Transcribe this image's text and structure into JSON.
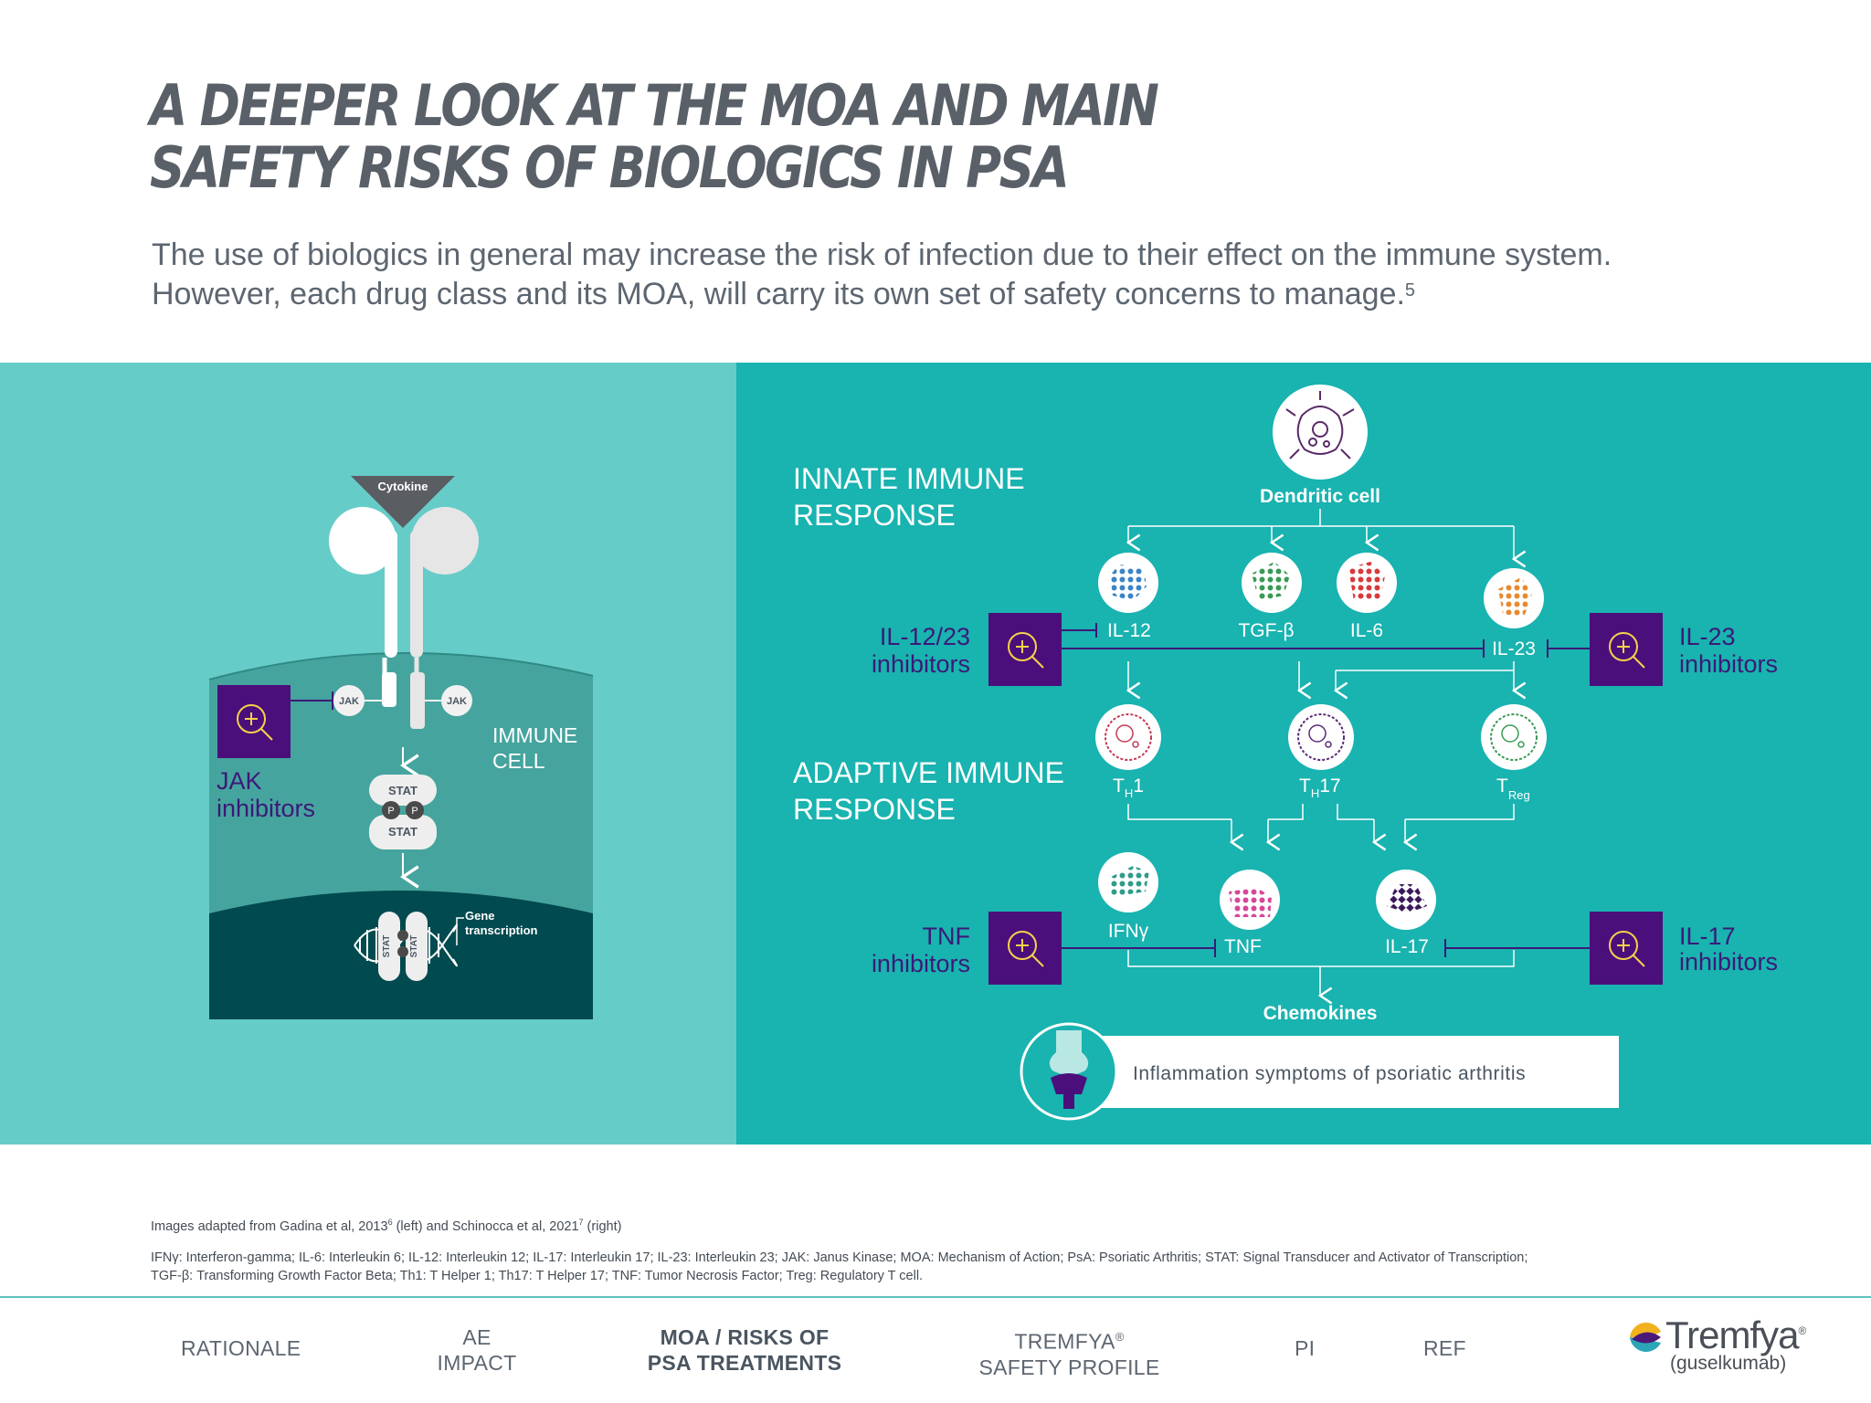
{
  "header": {
    "title_line1": "A DEEPER LOOK AT THE MOA AND MAIN",
    "title_line2": "SAFETY RISKS OF BIOLOGICS IN PSA",
    "intro": "The use of biologics in general may increase the risk of infection due to their effect on the immune system. However, each drug class and its MOA, will carry its own set of safety concerns to manage.",
    "intro_ref": "5"
  },
  "left_diagram": {
    "cytokine": "Cytokine",
    "jak": "JAK",
    "stat": "STAT",
    "p": "P",
    "immune_cell_1": "IMMUNE",
    "immune_cell_2": "CELL",
    "gene_1": "Gene",
    "gene_2": "transcription",
    "inhibitor_1": "JAK",
    "inhibitor_2": "inhibitors"
  },
  "right_diagram": {
    "innate_1": "INNATE IMMUNE",
    "innate_2": "RESPONSE",
    "adaptive_1": "ADAPTIVE IMMUNE",
    "adaptive_2": "RESPONSE",
    "dendritic": "Dendritic cell",
    "il12": "IL-12",
    "tgfb": "TGF-β",
    "il6": "IL-6",
    "il23": "IL-23",
    "th1": "T",
    "th1_sub": "H",
    "th1_num": "1",
    "th17": "T",
    "th17_sub": "H",
    "th17_num": "17",
    "treg": "T",
    "treg_sub": "Reg",
    "ifng": "IFNγ",
    "tnf": "TNF",
    "il17": "IL-17",
    "chemokines": "Chemokines",
    "inflammation": "Inflammation symptoms of psoriatic arthritis",
    "inh_il1223_1": "IL-12/23",
    "inh_il1223_2": "inhibitors",
    "inh_il23_1": "IL-23",
    "inh_il23_2": "inhibitors",
    "inh_tnf_1": "TNF",
    "inh_tnf_2": "inhibitors",
    "inh_il17_1": "IL-17",
    "inh_il17_2": "inhibitors"
  },
  "footnotes": {
    "images_a": "Images adapted from Gadina et al, 2013",
    "images_ref1": "6",
    "images_b": " (left) and Schinocca et al, 2021",
    "images_ref2": "7",
    "images_c": " (right)",
    "abbreviations_1": "IFNγ: Interferon-gamma; IL-6: Interleukin 6; IL-12: Interleukin 12; IL-17: Interleukin 17; IL-23: Interleukin 23; JAK: Janus Kinase; MOA: Mechanism of Action; PsA: Psoriatic Arthritis; STAT: Signal Transducer and Activator of Transcription;",
    "abbreviations_2": "TGF-β: Transforming Growth Factor Beta; Th1: T Helper 1; Th17: T Helper 17; TNF: Tumor Necrosis Factor; Treg: Regulatory T cell."
  },
  "nav": {
    "rationale": "RATIONALE",
    "ae_1": "AE",
    "ae_2": "IMPACT",
    "moa_1": "MOA / RISKS OF",
    "moa_2": "PSA TREATMENTS",
    "tremfya_1": "TREMFYA",
    "tremfya_reg": "®",
    "tremfya_2": "SAFETY PROFILE",
    "pi": "PI",
    "ref": "REF"
  },
  "brand": {
    "name": "Tremfya",
    "reg": "®",
    "sub": "(guselkumab)"
  },
  "icons": {
    "zoom": "zoom-in-magnifier-icon",
    "joint": "joint-icon",
    "dendritic": "dendritic-cell-icon"
  },
  "colors": {
    "left_panel": "#66ccc8",
    "right_panel": "#19b3b0",
    "inhibitor_box": "#4b0f7c",
    "inhibitor_text": "#3b1a78",
    "zoom_icon": "#f5d24a"
  }
}
